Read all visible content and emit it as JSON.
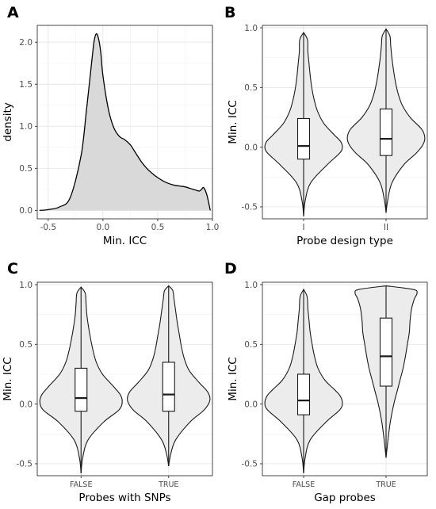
{
  "chart_data": [
    {
      "panel": "A",
      "type": "area",
      "xlabel": "Min. ICC",
      "ylabel": "density",
      "xlim": [
        -0.6,
        1.0
      ],
      "ylim": [
        -0.1,
        2.2
      ],
      "x_ticks": [
        "-0.5",
        "0.0",
        "0.5",
        "1.0"
      ],
      "y_ticks": [
        "0.0",
        "0.5",
        "1.0",
        "1.5",
        "2.0"
      ],
      "grid": true,
      "x": [
        -0.58,
        -0.5,
        -0.4,
        -0.3,
        -0.2,
        -0.15,
        -0.1,
        -0.08,
        -0.06,
        -0.04,
        -0.02,
        0.0,
        0.05,
        0.1,
        0.15,
        0.2,
        0.25,
        0.3,
        0.35,
        0.4,
        0.45,
        0.5,
        0.55,
        0.6,
        0.65,
        0.7,
        0.75,
        0.8,
        0.85,
        0.88,
        0.9,
        0.92,
        0.95,
        0.98
      ],
      "y": [
        0.0,
        0.01,
        0.04,
        0.15,
        0.65,
        1.2,
        1.8,
        2.02,
        2.1,
        2.04,
        1.88,
        1.6,
        1.2,
        0.98,
        0.88,
        0.84,
        0.78,
        0.68,
        0.58,
        0.5,
        0.44,
        0.39,
        0.35,
        0.32,
        0.3,
        0.29,
        0.28,
        0.26,
        0.24,
        0.23,
        0.25,
        0.27,
        0.18,
        0.0
      ]
    },
    {
      "panel": "B",
      "type": "violin",
      "xlabel": "Probe design type",
      "ylabel": "Min. ICC",
      "categories": [
        "I",
        "II"
      ],
      "ylim": [
        -0.6,
        1.02
      ],
      "y_ticks": [
        "-0.5",
        "0.0",
        "0.5",
        "1.0"
      ],
      "grid": true,
      "groups": [
        {
          "name": "I",
          "min": -0.58,
          "q1": -0.1,
          "median": 0.01,
          "q3": 0.24,
          "max": 0.96,
          "profile": [
            [
              -0.58,
              0.0
            ],
            [
              -0.45,
              0.04
            ],
            [
              -0.3,
              0.18
            ],
            [
              -0.15,
              0.6
            ],
            [
              -0.05,
              0.93
            ],
            [
              0.0,
              1.0
            ],
            [
              0.05,
              0.95
            ],
            [
              0.1,
              0.8
            ],
            [
              0.2,
              0.52
            ],
            [
              0.3,
              0.36
            ],
            [
              0.4,
              0.27
            ],
            [
              0.5,
              0.21
            ],
            [
              0.6,
              0.17
            ],
            [
              0.7,
              0.14
            ],
            [
              0.8,
              0.11
            ],
            [
              0.9,
              0.1
            ],
            [
              0.96,
              0.0
            ]
          ]
        },
        {
          "name": "II",
          "min": -0.55,
          "q1": -0.07,
          "median": 0.07,
          "q3": 0.32,
          "max": 0.99,
          "profile": [
            [
              -0.55,
              0.0
            ],
            [
              -0.45,
              0.04
            ],
            [
              -0.3,
              0.15
            ],
            [
              -0.15,
              0.45
            ],
            [
              -0.05,
              0.78
            ],
            [
              0.02,
              0.95
            ],
            [
              0.08,
              1.0
            ],
            [
              0.15,
              0.92
            ],
            [
              0.25,
              0.62
            ],
            [
              0.35,
              0.42
            ],
            [
              0.45,
              0.31
            ],
            [
              0.55,
              0.24
            ],
            [
              0.65,
              0.19
            ],
            [
              0.75,
              0.15
            ],
            [
              0.85,
              0.12
            ],
            [
              0.93,
              0.1
            ],
            [
              0.99,
              0.0
            ]
          ]
        }
      ]
    },
    {
      "panel": "C",
      "type": "violin",
      "xlabel": "Probes with SNPs",
      "ylabel": "Min. ICC",
      "categories": [
        "FALSE",
        "TRUE"
      ],
      "ylim": [
        -0.6,
        1.02
      ],
      "y_ticks": [
        "-0.5",
        "0.0",
        "0.5",
        "1.0"
      ],
      "grid": true,
      "groups": [
        {
          "name": "FALSE",
          "min": -0.58,
          "q1": -0.06,
          "median": 0.05,
          "q3": 0.3,
          "max": 0.98,
          "profile": [
            [
              -0.58,
              0.0
            ],
            [
              -0.45,
              0.04
            ],
            [
              -0.3,
              0.17
            ],
            [
              -0.15,
              0.55
            ],
            [
              -0.05,
              0.92
            ],
            [
              0.02,
              1.0
            ],
            [
              0.08,
              0.95
            ],
            [
              0.15,
              0.78
            ],
            [
              0.25,
              0.52
            ],
            [
              0.35,
              0.37
            ],
            [
              0.45,
              0.29
            ],
            [
              0.55,
              0.23
            ],
            [
              0.65,
              0.18
            ],
            [
              0.75,
              0.14
            ],
            [
              0.85,
              0.12
            ],
            [
              0.93,
              0.1
            ],
            [
              0.98,
              0.0
            ]
          ]
        },
        {
          "name": "TRUE",
          "min": -0.52,
          "q1": -0.06,
          "median": 0.08,
          "q3": 0.35,
          "max": 0.99,
          "profile": [
            [
              -0.52,
              0.0
            ],
            [
              -0.42,
              0.05
            ],
            [
              -0.3,
              0.17
            ],
            [
              -0.15,
              0.52
            ],
            [
              -0.05,
              0.86
            ],
            [
              0.03,
              1.0
            ],
            [
              0.1,
              0.95
            ],
            [
              0.18,
              0.74
            ],
            [
              0.28,
              0.5
            ],
            [
              0.38,
              0.38
            ],
            [
              0.48,
              0.31
            ],
            [
              0.58,
              0.26
            ],
            [
              0.68,
              0.21
            ],
            [
              0.78,
              0.17
            ],
            [
              0.88,
              0.13
            ],
            [
              0.95,
              0.1
            ],
            [
              0.99,
              0.0
            ]
          ]
        }
      ]
    },
    {
      "panel": "D",
      "type": "violin",
      "xlabel": "Gap probes",
      "ylabel": "Min. ICC",
      "categories": [
        "FALSE",
        "TRUE"
      ],
      "ylim": [
        -0.6,
        1.02
      ],
      "y_ticks": [
        "-0.5",
        "0.0",
        "0.5",
        "1.0"
      ],
      "grid": true,
      "groups": [
        {
          "name": "FALSE",
          "min": -0.58,
          "q1": -0.09,
          "median": 0.03,
          "q3": 0.25,
          "max": 0.96,
          "profile": [
            [
              -0.58,
              0.0
            ],
            [
              -0.45,
              0.04
            ],
            [
              -0.3,
              0.17
            ],
            [
              -0.15,
              0.58
            ],
            [
              -0.05,
              0.93
            ],
            [
              0.01,
              1.0
            ],
            [
              0.07,
              0.94
            ],
            [
              0.12,
              0.8
            ],
            [
              0.2,
              0.55
            ],
            [
              0.3,
              0.37
            ],
            [
              0.4,
              0.28
            ],
            [
              0.5,
              0.22
            ],
            [
              0.6,
              0.17
            ],
            [
              0.7,
              0.14
            ],
            [
              0.8,
              0.11
            ],
            [
              0.9,
              0.09
            ],
            [
              0.96,
              0.0
            ]
          ]
        },
        {
          "name": "TRUE",
          "min": -0.45,
          "q1": 0.15,
          "median": 0.4,
          "q3": 0.72,
          "max": 0.99,
          "profile": [
            [
              -0.45,
              0.0
            ],
            [
              -0.3,
              0.05
            ],
            [
              -0.15,
              0.11
            ],
            [
              0.0,
              0.2
            ],
            [
              0.1,
              0.28
            ],
            [
              0.2,
              0.36
            ],
            [
              0.3,
              0.44
            ],
            [
              0.4,
              0.5
            ],
            [
              0.5,
              0.55
            ],
            [
              0.6,
              0.6
            ],
            [
              0.7,
              0.62
            ],
            [
              0.8,
              0.66
            ],
            [
              0.88,
              0.73
            ],
            [
              0.93,
              0.8
            ],
            [
              0.96,
              0.7
            ],
            [
              0.99,
              0.0
            ]
          ]
        }
      ]
    }
  ]
}
